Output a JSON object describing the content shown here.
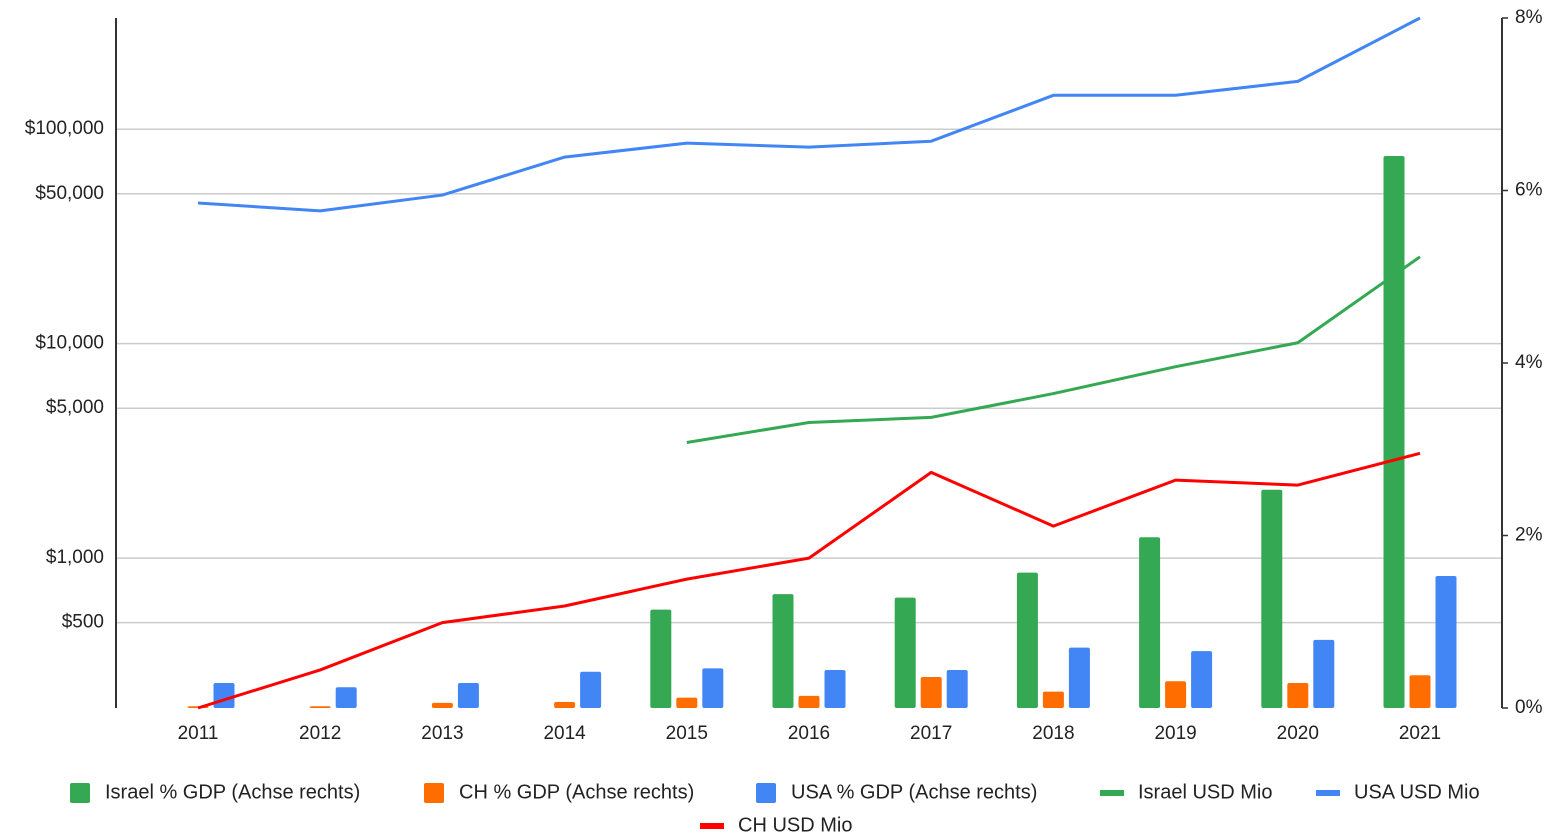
{
  "chart_data": {
    "type": "combo",
    "categories": [
      "2011",
      "2012",
      "2013",
      "2014",
      "2015",
      "2016",
      "2017",
      "2018",
      "2019",
      "2020",
      "2021"
    ],
    "log_scale": true,
    "ylim": [
      200,
      330000
    ],
    "yticks": [
      {
        "value": 500,
        "label": "$500"
      },
      {
        "value": 1000,
        "label": "$1,000"
      },
      {
        "value": 5000,
        "label": "$5,000"
      },
      {
        "value": 10000,
        "label": "$10,000"
      },
      {
        "value": 50000,
        "label": "$50,000"
      },
      {
        "value": 100000,
        "label": "$100,000"
      }
    ],
    "y2lim": [
      0,
      8
    ],
    "y2ticks": [
      {
        "value": 0,
        "label": "0%"
      },
      {
        "value": 2,
        "label": "2%"
      },
      {
        "value": 4,
        "label": "4%"
      },
      {
        "value": 6,
        "label": "6%"
      },
      {
        "value": 8,
        "label": "8%"
      }
    ],
    "grid": true,
    "legend": "bottom",
    "series": [
      {
        "name": "Israel % GDP (Achse rechts)",
        "type": "bar",
        "axis": "y2",
        "color": "#34a853",
        "values": [
          null,
          null,
          null,
          null,
          1.14,
          1.32,
          1.28,
          1.57,
          1.98,
          2.53,
          6.4
        ]
      },
      {
        "name": "CH % GDP (Achse rechts)",
        "type": "bar",
        "axis": "y2",
        "color": "#ff6d01",
        "values": [
          0.02,
          0.02,
          0.06,
          0.07,
          0.12,
          0.14,
          0.36,
          0.19,
          0.31,
          0.29,
          0.38
        ]
      },
      {
        "name": "USA % GDP (Achse rechts)",
        "type": "bar",
        "axis": "y2",
        "color": "#4285f4",
        "values": [
          0.29,
          0.24,
          0.29,
          0.42,
          0.46,
          0.44,
          0.44,
          0.7,
          0.66,
          0.79,
          1.53
        ]
      },
      {
        "name": "Israel USD Mio",
        "type": "line",
        "color": "#34a853",
        "values": [
          null,
          null,
          null,
          null,
          3460,
          4290,
          4530,
          5850,
          7810,
          10100,
          25400
        ]
      },
      {
        "name": "USA USD Mio",
        "type": "line",
        "color": "#4285f4",
        "values": [
          45300,
          41600,
          49300,
          74100,
          86100,
          82500,
          87900,
          143900,
          143900,
          167100,
          330000
        ]
      },
      {
        "name": "CH USD Mio",
        "type": "line",
        "color": "#ff0000",
        "values": [
          200,
          301,
          500,
          598,
          798,
          1000,
          2510,
          1410,
          2310,
          2190,
          3080
        ]
      }
    ]
  }
}
